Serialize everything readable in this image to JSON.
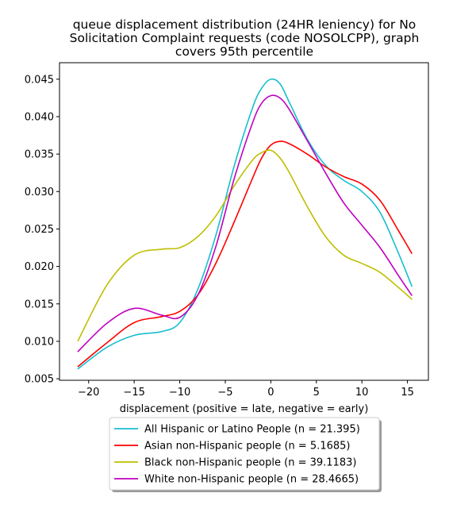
{
  "chart_data": {
    "type": "line",
    "title_lines": [
      "queue displacement distribution (24HR leniency) for No",
      "Solicitation Complaint  requests (code NOSOLCPP), graph",
      "covers 95th percentile"
    ],
    "xlabel": "displacement (positive = late, negative = early)",
    "ylabel": "",
    "xlim": [
      -23.2,
      17.3
    ],
    "ylim": [
      0.0048,
      0.0472
    ],
    "xticks": [
      -20,
      -15,
      -10,
      -5,
      0,
      5,
      10,
      15
    ],
    "xtick_labels": [
      "−20",
      "−15",
      "−10",
      "−5",
      "0",
      "5",
      "10",
      "15"
    ],
    "yticks": [
      0.005,
      0.01,
      0.015,
      0.02,
      0.025,
      0.03,
      0.035,
      0.04,
      0.045
    ],
    "ytick_labels": [
      "0.005",
      "0.010",
      "0.015",
      "0.020",
      "0.025",
      "0.030",
      "0.035",
      "0.040",
      "0.045"
    ],
    "grid": false,
    "legend_position": "below plot",
    "x": [
      -21.2,
      -18,
      -15,
      -12,
      -10,
      -8,
      -6,
      -4,
      -2,
      -1,
      0,
      1,
      2,
      4,
      6,
      8,
      10,
      12,
      14,
      15.5
    ],
    "series": [
      {
        "name": "All Hispanic or Latino People (n = 21.395)",
        "color": "#17becf",
        "values": [
          0.0063,
          0.0092,
          0.0108,
          0.0113,
          0.0125,
          0.017,
          0.0243,
          0.0335,
          0.0412,
          0.0438,
          0.045,
          0.0444,
          0.042,
          0.037,
          0.0335,
          0.0315,
          0.03,
          0.0272,
          0.0218,
          0.0173
        ]
      },
      {
        "name": "Asian non-Hispanic people (n = 5.1685)",
        "color": "#ff0000",
        "values": [
          0.0066,
          0.0098,
          0.0125,
          0.0133,
          0.014,
          0.0162,
          0.0205,
          0.026,
          0.0318,
          0.0345,
          0.0362,
          0.0367,
          0.0364,
          0.035,
          0.0333,
          0.032,
          0.031,
          0.0288,
          0.0248,
          0.0217
        ]
      },
      {
        "name": "Black non-Hispanic people (n = 39.1183)",
        "color": "#bfbf00",
        "values": [
          0.01,
          0.0175,
          0.0215,
          0.0223,
          0.0225,
          0.024,
          0.0268,
          0.0308,
          0.0342,
          0.0352,
          0.0355,
          0.0345,
          0.0326,
          0.028,
          0.024,
          0.0215,
          0.0204,
          0.0192,
          0.0172,
          0.0156
        ]
      },
      {
        "name": "White non-Hispanic people (n = 28.4665)",
        "color": "#bf00bf",
        "values": [
          0.0086,
          0.0124,
          0.0144,
          0.0135,
          0.0132,
          0.0162,
          0.0228,
          0.0318,
          0.0392,
          0.0418,
          0.0428,
          0.0425,
          0.041,
          0.0368,
          0.0325,
          0.0285,
          0.0255,
          0.0225,
          0.0188,
          0.0161
        ]
      }
    ]
  }
}
